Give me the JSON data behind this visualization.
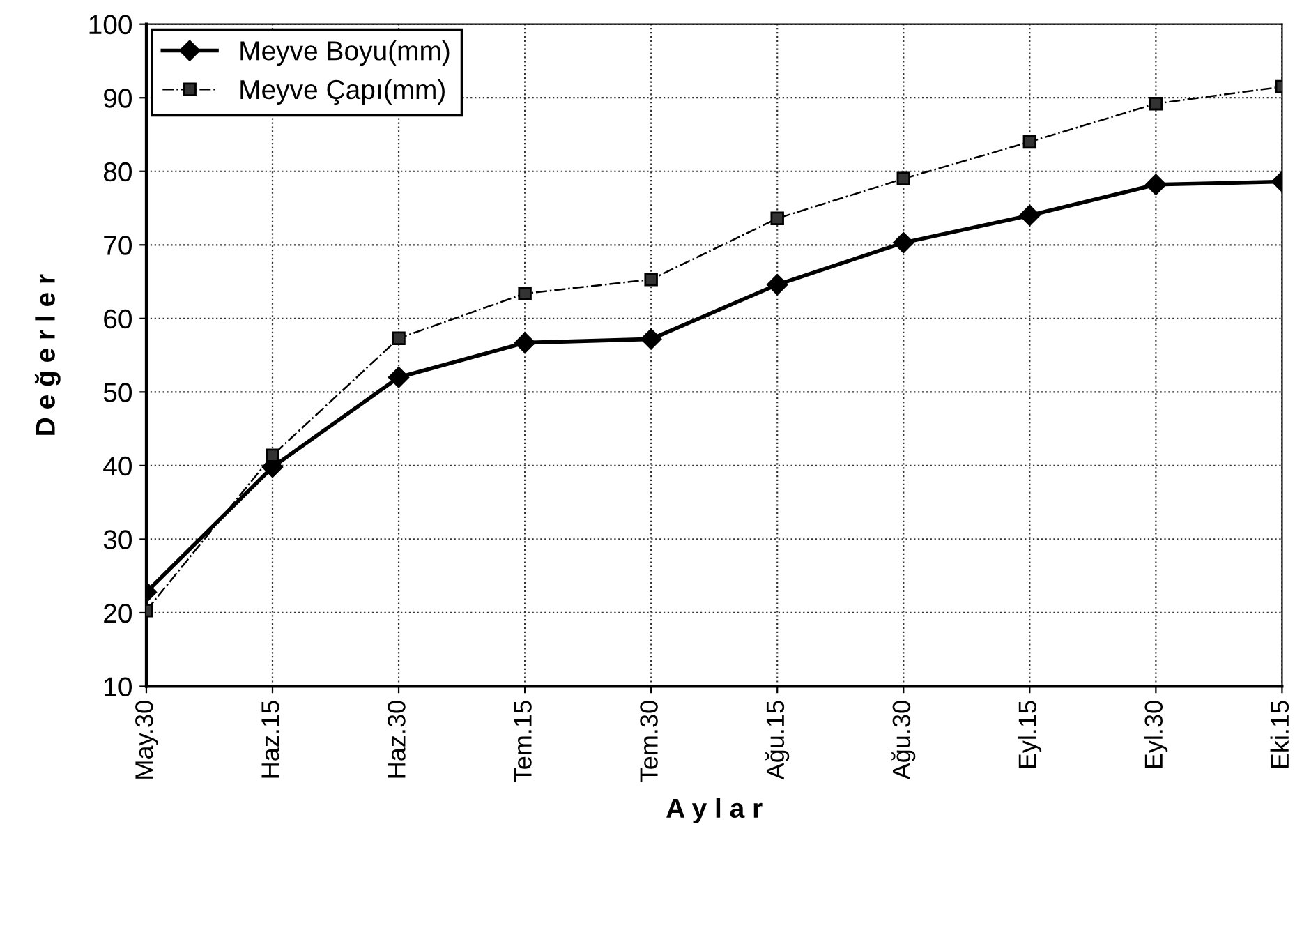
{
  "chart_data": {
    "type": "line",
    "xlabel": "A y l a r",
    "ylabel": "D e ğ e r l e r",
    "categories": [
      "May.30",
      "Haz.15",
      "Haz.30",
      "Tem.15",
      "Tem.30",
      "Ağu.15",
      "Ağu.30",
      "Eyl.15",
      "Eyl.30",
      "Eki.15"
    ],
    "series": [
      {
        "name": "Meyve Boyu(mm)",
        "color": "#000000",
        "marker": "diamond",
        "line_style": "solid",
        "values": [
          22.8,
          39.8,
          52.0,
          56.7,
          57.2,
          64.6,
          70.3,
          74.0,
          78.2,
          78.6
        ]
      },
      {
        "name": "Meyve Çapı(mm)",
        "color": "#000000",
        "marker": "square",
        "line_style": "dashed",
        "values": [
          20.3,
          41.4,
          57.3,
          63.4,
          65.3,
          73.6,
          79.0,
          84.0,
          89.2,
          91.5
        ]
      }
    ],
    "ylim": [
      10,
      100
    ],
    "yticks": [
      10,
      20,
      30,
      40,
      50,
      60,
      70,
      80,
      90,
      100
    ],
    "grid": true,
    "legend": "top left"
  }
}
